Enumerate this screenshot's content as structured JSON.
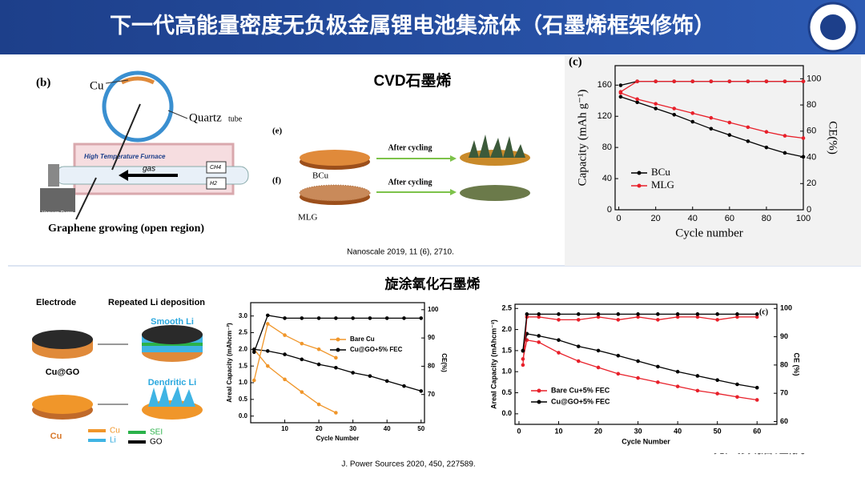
{
  "header": {
    "title": "下一代高能量密度无负极金属锂电池集流体（石墨烯框架修饰）"
  },
  "top_section": {
    "title": "CVD石墨烯",
    "citation": "Nanoscale 2019, 11 (6), 2710.",
    "diagram_b": {
      "label": "(b)",
      "cu": "Cu",
      "quartz": "Quartz",
      "tube": "tube",
      "furnace": "High Temperature Furnace",
      "gas": "gas",
      "ch4": "CH4",
      "h2": "H2",
      "pump": "Vacuum Pump",
      "caption": "Graphene growing (open region)"
    },
    "diagram_ef": {
      "label_e": "(e)",
      "label_f": "(f)",
      "bcu": "BCu",
      "mlg": "MLG",
      "arrow_e": "After cycling",
      "arrow_f": "After cycling"
    }
  },
  "bottom_section": {
    "title": "旋涂氧化石墨烯",
    "citation": "J. Power Sources 2020, 450, 227589.",
    "diagram": {
      "electrode": "Electrode",
      "deposition": "Repeated Li deposition",
      "smooth": "Smooth Li",
      "dendritic": "Dendritic Li",
      "cugo": "Cu@GO",
      "cu": "Cu",
      "legend": [
        "Cu",
        "SEI",
        "Li",
        "GO"
      ]
    }
  },
  "watermark": "晓风数据锂航",
  "chart_data": [
    {
      "type": "line",
      "panel_label": "(c)",
      "xlabel": "Cycle number",
      "ylabel": "Capacity (mAh g⁻¹)",
      "y2label": "CE(%)",
      "xlim": [
        -2,
        100
      ],
      "xticks": [
        0,
        20,
        40,
        60,
        80,
        100
      ],
      "ylim": [
        0,
        185
      ],
      "yticks": [
        0,
        40,
        80,
        120,
        160
      ],
      "y2lim": [
        0,
        110
      ],
      "y2ticks": [
        0,
        20,
        40,
        60,
        80,
        100
      ],
      "legend": "lower left",
      "x": [
        1,
        10,
        20,
        30,
        40,
        50,
        60,
        70,
        80,
        90,
        100
      ],
      "series": [
        {
          "name": "BCu",
          "color": "#000000",
          "values": [
            145,
            138,
            130,
            122,
            113,
            104,
            96,
            88,
            80,
            73,
            68
          ]
        },
        {
          "name": "MLG",
          "color": "#e8202a",
          "values": [
            150,
            142,
            136,
            130,
            124,
            118,
            112,
            106,
            100,
            95,
            92
          ]
        },
        {
          "color": "#000000",
          "axis": "y2",
          "values": [
            95,
            98,
            98,
            98,
            98,
            98,
            98,
            98,
            98,
            98,
            98
          ]
        },
        {
          "color": "#e8202a",
          "axis": "y2",
          "values": [
            90,
            98,
            98,
            98,
            98,
            98,
            98,
            98,
            98,
            98,
            98
          ]
        }
      ]
    },
    {
      "type": "line",
      "xlabel": "Cycle Number",
      "ylabel": "Areal Capacity (mAhcm⁻²)",
      "y2label": "CE(%)",
      "xlim": [
        0,
        51
      ],
      "xticks": [
        10,
        20,
        30,
        40,
        50
      ],
      "ylim": [
        -0.2,
        3.4
      ],
      "yticks": [
        {
          "value": 0,
          "label": "0.0"
        },
        0.5,
        {
          "value": 1,
          "label": "1.0"
        },
        1.5,
        {
          "value": 2,
          "label": "2.0"
        },
        2.5,
        {
          "value": 3,
          "label": "3.0"
        }
      ],
      "y2lim": [
        60,
        102.5
      ],
      "y2ticks": [
        70,
        80,
        90,
        100
      ],
      "legend": "upper right",
      "x": [
        1,
        5,
        10,
        15,
        20,
        25,
        30,
        35,
        40,
        45,
        50
      ],
      "series": [
        {
          "name": "Bare Cu",
          "color": "#f0962a",
          "values": [
            2.0,
            1.5,
            1.1,
            0.72,
            0.35,
            0.1,
            null,
            null,
            null,
            null,
            null
          ]
        },
        {
          "name": "Cu@GO+5% FEC",
          "color": "#000000",
          "values": [
            2.0,
            1.95,
            1.85,
            1.7,
            1.55,
            1.45,
            1.3,
            1.2,
            1.05,
            0.9,
            0.75
          ]
        },
        {
          "color": "#f0962a",
          "axis": "y2",
          "values": [
            75,
            95,
            91,
            88,
            86,
            83,
            null,
            null,
            null,
            null,
            null
          ]
        },
        {
          "color": "#000000",
          "axis": "y2",
          "values": [
            85,
            98,
            97,
            97,
            97,
            97,
            97,
            97,
            97,
            97,
            97
          ]
        }
      ]
    },
    {
      "type": "line",
      "panel_label": "(c)",
      "xlabel": "Cycle Number",
      "ylabel": "Areal Capacity (mAhcm⁻²)",
      "y2label": "CE (%)",
      "xlim": [
        -1,
        65
      ],
      "xticks": [
        0,
        10,
        20,
        30,
        40,
        50,
        60
      ],
      "ylim": [
        -0.25,
        2.6
      ],
      "yticks": [
        {
          "value": 0,
          "label": "0.0"
        },
        0.5,
        {
          "value": 1,
          "label": "1.0"
        },
        1.5,
        {
          "value": 2,
          "label": "2.0"
        },
        2.5
      ],
      "y2lim": [
        59,
        101.5
      ],
      "y2ticks": [
        60,
        70,
        80,
        90,
        100
      ],
      "legend": "lower left",
      "x": [
        1,
        2,
        5,
        10,
        15,
        20,
        25,
        30,
        35,
        40,
        45,
        50,
        55,
        60
      ],
      "series": [
        {
          "name": "Bare Cu+5% FEC",
          "color": "#e8202a",
          "values": [
            1.3,
            1.75,
            1.7,
            1.45,
            1.25,
            1.1,
            0.95,
            0.85,
            0.75,
            0.65,
            0.55,
            0.48,
            0.4,
            0.33
          ]
        },
        {
          "name": "Cu@GO+5% FEC",
          "color": "#000000",
          "values": [
            1.5,
            1.9,
            1.85,
            1.75,
            1.6,
            1.5,
            1.38,
            1.25,
            1.12,
            1.0,
            0.9,
            0.8,
            0.7,
            0.62
          ]
        },
        {
          "color": "#e8202a",
          "axis": "y2",
          "values": [
            80,
            97,
            97,
            96,
            96,
            97,
            96,
            97,
            96,
            97,
            97,
            96,
            97,
            97
          ]
        },
        {
          "color": "#000000",
          "axis": "y2",
          "values": [
            85,
            98,
            98,
            98,
            98,
            98,
            98,
            98,
            98,
            98,
            98,
            98,
            98,
            98
          ]
        }
      ]
    }
  ]
}
